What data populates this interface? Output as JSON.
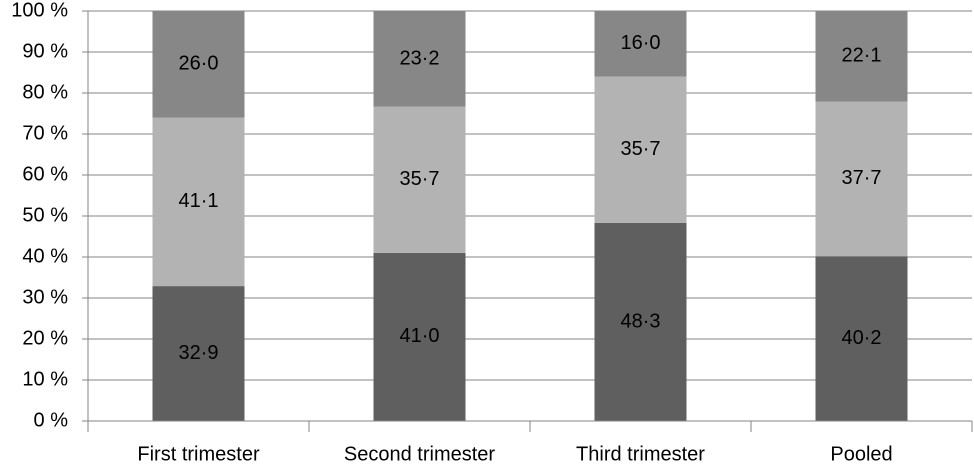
{
  "chart_data": {
    "type": "stacked_bar_100",
    "categories": [
      "First trimester",
      "Second trimester",
      "Third trimester",
      "Pooled"
    ],
    "series": [
      {
        "color": "#5f5f5f",
        "values": [
          32.9,
          41.0,
          48.3,
          40.2
        ],
        "value_labels": [
          "32·9",
          "41·0",
          "48·3",
          "40·2"
        ]
      },
      {
        "color": "#b3b3b3",
        "values": [
          41.1,
          35.7,
          35.7,
          37.7
        ],
        "value_labels": [
          "41·1",
          "35·7",
          "35·7",
          "37·7"
        ]
      },
      {
        "color": "#878787",
        "values": [
          26.0,
          23.2,
          16.0,
          22.1
        ],
        "value_labels": [
          "26·0",
          "23·2",
          "16·0",
          "22·1"
        ]
      }
    ],
    "ylim": [
      0,
      100
    ],
    "yticks": [
      {
        "value": 0,
        "label": "0 %"
      },
      {
        "value": 10,
        "label": "10 %"
      },
      {
        "value": 20,
        "label": "20 %"
      },
      {
        "value": 30,
        "label": "30 %"
      },
      {
        "value": 40,
        "label": "40 %"
      },
      {
        "value": 50,
        "label": "50 %"
      },
      {
        "value": 60,
        "label": "60 %"
      },
      {
        "value": 70,
        "label": "70 %"
      },
      {
        "value": 80,
        "label": "80 %"
      },
      {
        "value": 90,
        "label": "90 %"
      },
      {
        "value": 100,
        "label": "100 %"
      }
    ],
    "grid": true
  }
}
